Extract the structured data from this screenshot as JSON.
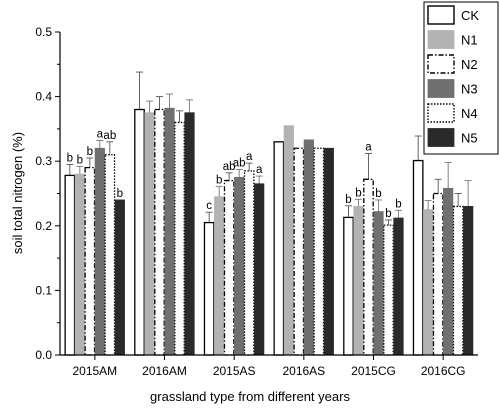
{
  "chart_data": {
    "type": "bar",
    "title": "",
    "xlabel": "grassland type from different years",
    "ylabel": "soil total nitrogen (%)",
    "ylim": [
      0.0,
      0.5
    ],
    "yticks": [
      "0.0",
      "0.1",
      "0.2",
      "0.3",
      "0.4",
      "0.5"
    ],
    "yticks_values": [
      0.0,
      0.1,
      0.2,
      0.3,
      0.4,
      0.5
    ],
    "categories": [
      "2015AM",
      "2016AM",
      "2015AS",
      "2016AS",
      "2015CG",
      "2016CG"
    ],
    "legend_position": "top-right",
    "grid": false,
    "series": [
      {
        "name": "CK",
        "style": "white-solid",
        "color": "#ffffff",
        "edge": "#000000",
        "values": [
          0.278,
          0.38,
          0.205,
          0.33,
          0.213,
          0.301
        ],
        "errors": [
          0.017,
          0.058,
          0.016,
          0.0,
          0.018,
          0.038
        ],
        "sig": [
          "b",
          "",
          "c",
          "",
          "b",
          ""
        ]
      },
      {
        "name": "N1",
        "style": "light-gray",
        "color": "#b3b3b3",
        "edge": "#b3b3b3",
        "values": [
          0.28,
          0.375,
          0.245,
          0.355,
          0.23,
          0.225
        ],
        "errors": [
          0.012,
          0.018,
          0.016,
          0.0,
          0.011,
          0.014
        ],
        "sig": [
          "b",
          "",
          "b",
          "",
          "b",
          ""
        ]
      },
      {
        "name": "N2",
        "style": "white-dashdot",
        "color": "#ffffff",
        "edge": "#000000",
        "values": [
          0.29,
          0.38,
          0.27,
          0.32,
          0.272,
          0.25
        ],
        "errors": [
          0.015,
          0.02,
          0.012,
          0.0,
          0.04,
          0.022
        ],
        "sig": [
          "b",
          "",
          "ab",
          "",
          "a",
          ""
        ]
      },
      {
        "name": "N3",
        "style": "mid-gray",
        "color": "#707070",
        "edge": "#707070",
        "values": [
          0.32,
          0.382,
          0.275,
          0.333,
          0.222,
          0.258
        ],
        "errors": [
          0.012,
          0.022,
          0.012,
          0.0,
          0.018,
          0.04
        ],
        "sig": [
          "a",
          "",
          "ab",
          "",
          "b",
          ""
        ]
      },
      {
        "name": "N4",
        "style": "white-dotted",
        "color": "#ffffff",
        "edge": "#000000",
        "values": [
          0.31,
          0.36,
          0.285,
          0.32,
          0.201,
          0.23
        ],
        "errors": [
          0.02,
          0.018,
          0.012,
          0.0,
          0.008,
          0.02
        ],
        "sig": [
          "ab",
          "",
          "a",
          "",
          "b",
          ""
        ]
      },
      {
        "name": "N5",
        "style": "dark",
        "color": "#2a2a2a",
        "edge": "#2a2a2a",
        "values": [
          0.24,
          0.375,
          0.265,
          0.32,
          0.212,
          0.23
        ],
        "errors": [
          0.0,
          0.02,
          0.012,
          0.0,
          0.012,
          0.04
        ],
        "sig": [
          "b",
          "",
          "a",
          "",
          "b",
          ""
        ]
      }
    ]
  }
}
